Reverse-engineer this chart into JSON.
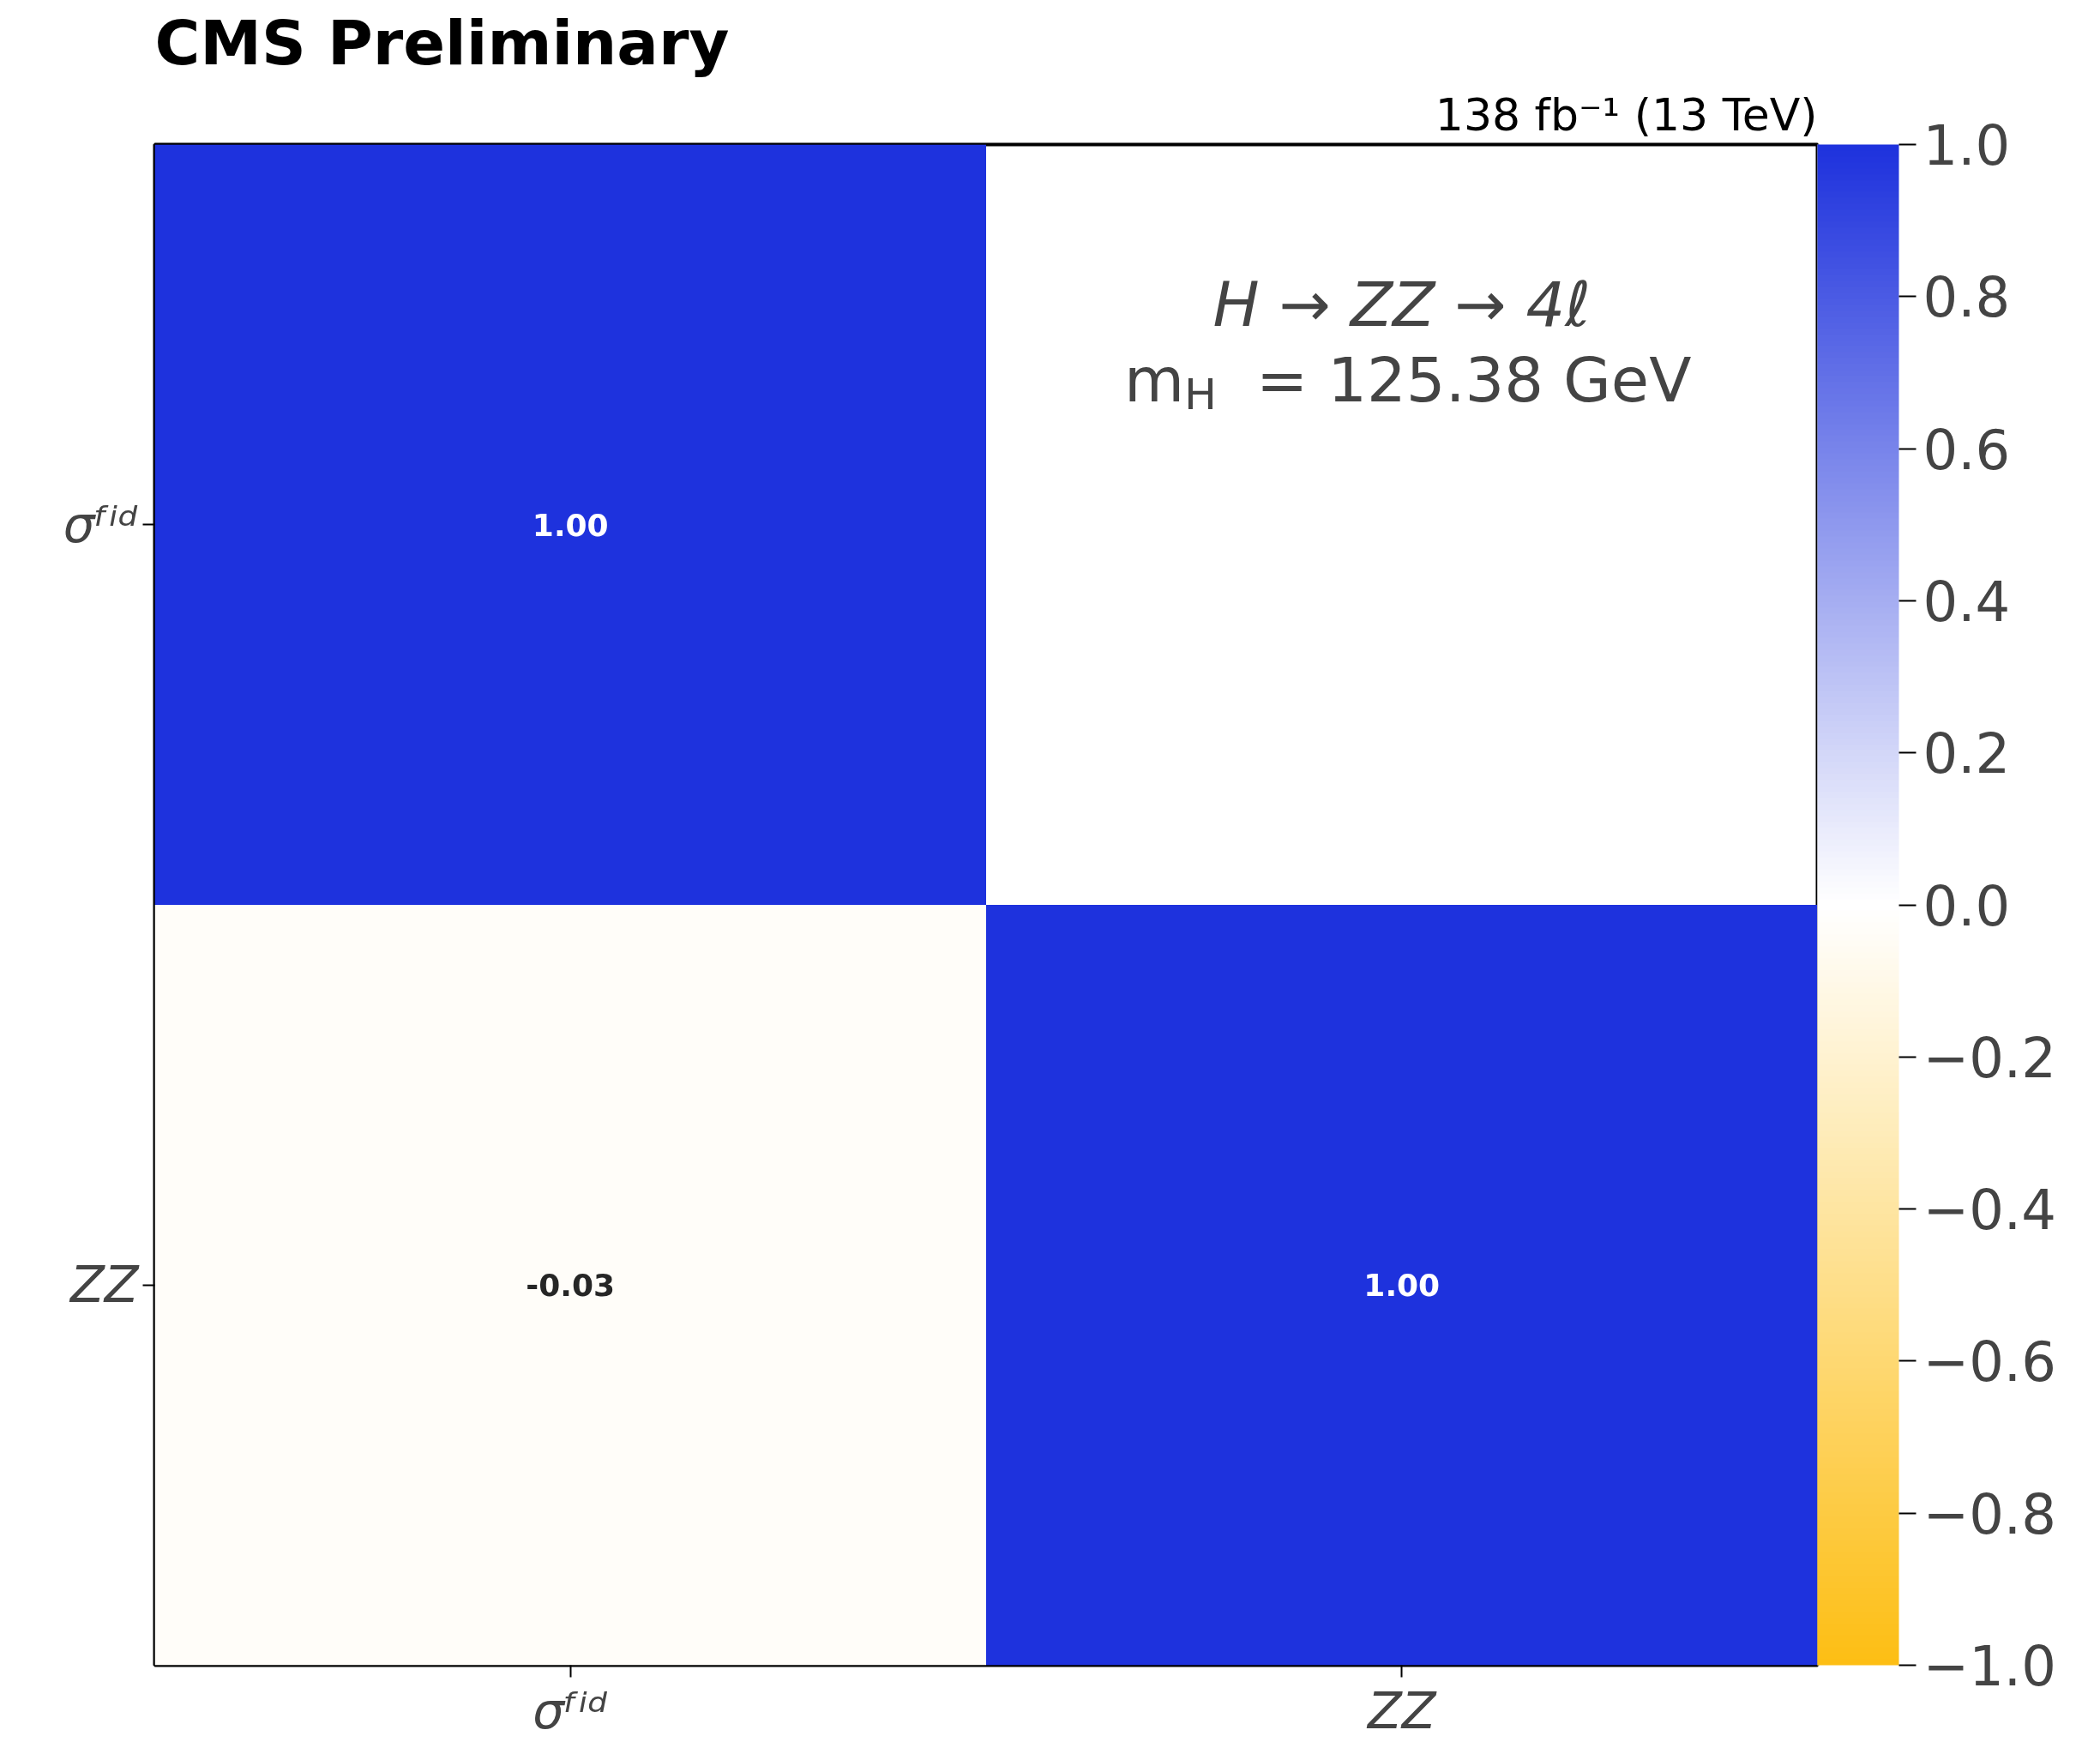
{
  "chart_data": {
    "type": "heatmap",
    "title": "CMS Preliminary",
    "subtitle": "138 fb⁻¹ (13 TeV)",
    "categories": [
      "σᶠⁱᵈ",
      "ZZ"
    ],
    "y_categories": [
      "σᶠⁱᵈ",
      "ZZ"
    ],
    "cells": [
      [
        1.0,
        null
      ],
      [
        -0.03,
        1.0
      ]
    ],
    "cell_labels": [
      [
        "1.00",
        null
      ],
      [
        "-0.03",
        "1.00"
      ]
    ],
    "clim": [
      -1.0,
      1.0
    ],
    "cticks": [
      {
        "value": -1.0,
        "label": "−1.0"
      },
      {
        "value": -0.8,
        "label": "−0.8"
      },
      {
        "value": -0.6,
        "label": "−0.6"
      },
      {
        "value": -0.4,
        "label": "−0.4"
      },
      {
        "value": -0.2,
        "label": "−0.2"
      },
      {
        "value": 0.0,
        "label": "0.0"
      },
      {
        "value": 0.2,
        "label": "0.2"
      },
      {
        "value": 0.4,
        "label": "0.4"
      },
      {
        "value": 0.6,
        "label": "0.6"
      },
      {
        "value": 0.8,
        "label": "0.8"
      },
      {
        "value": 1.0,
        "label": "1.0"
      }
    ],
    "annotations": [
      "H → ZZ → 4ℓ",
      "m$_{H}$ = 125.38 GeV"
    ]
  }
}
